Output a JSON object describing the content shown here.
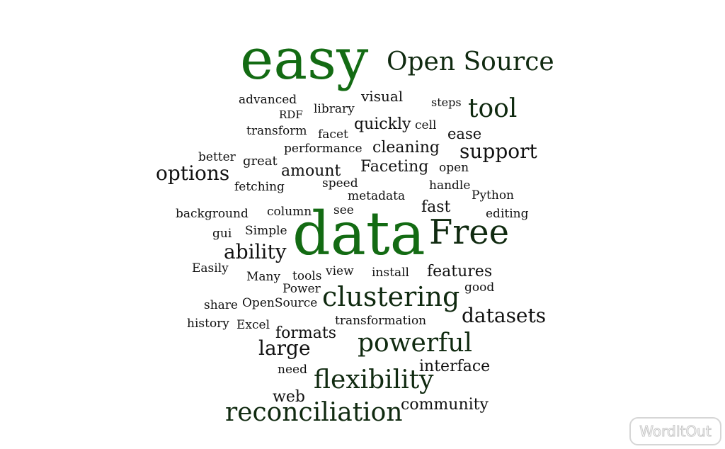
{
  "words": [
    {
      "text": "easy"
    },
    {
      "text": "Open Source"
    },
    {
      "text": "advanced"
    },
    {
      "text": "library"
    },
    {
      "text": "visual"
    },
    {
      "text": "steps"
    },
    {
      "text": "tool"
    },
    {
      "text": "RDF"
    },
    {
      "text": "quickly"
    },
    {
      "text": "cell"
    },
    {
      "text": "transform"
    },
    {
      "text": "facet"
    },
    {
      "text": "ease"
    },
    {
      "text": "performance"
    },
    {
      "text": "cleaning"
    },
    {
      "text": "support"
    },
    {
      "text": "better"
    },
    {
      "text": "great"
    },
    {
      "text": "options"
    },
    {
      "text": "amount"
    },
    {
      "text": "Faceting"
    },
    {
      "text": "open"
    },
    {
      "text": "fetching"
    },
    {
      "text": "speed"
    },
    {
      "text": "handle"
    },
    {
      "text": "metadata"
    },
    {
      "text": "Python"
    },
    {
      "text": "fast"
    },
    {
      "text": "background"
    },
    {
      "text": "column"
    },
    {
      "text": "see"
    },
    {
      "text": "editing"
    },
    {
      "text": "data"
    },
    {
      "text": "Free"
    },
    {
      "text": "gui"
    },
    {
      "text": "Simple"
    },
    {
      "text": "ability"
    },
    {
      "text": "Easily"
    },
    {
      "text": "view"
    },
    {
      "text": "install"
    },
    {
      "text": "features"
    },
    {
      "text": "Many"
    },
    {
      "text": "tools"
    },
    {
      "text": "Power"
    },
    {
      "text": "good"
    },
    {
      "text": "clustering"
    },
    {
      "text": "share"
    },
    {
      "text": "OpenSource"
    },
    {
      "text": "datasets"
    },
    {
      "text": "history"
    },
    {
      "text": "Excel"
    },
    {
      "text": "transformation"
    },
    {
      "text": "formats"
    },
    {
      "text": "powerful"
    },
    {
      "text": "large"
    },
    {
      "text": "need"
    },
    {
      "text": "interface"
    },
    {
      "text": "flexibility"
    },
    {
      "text": "web"
    },
    {
      "text": "community"
    },
    {
      "text": "reconciliation"
    }
  ],
  "logo": {
    "text": "WordItOut"
  }
}
